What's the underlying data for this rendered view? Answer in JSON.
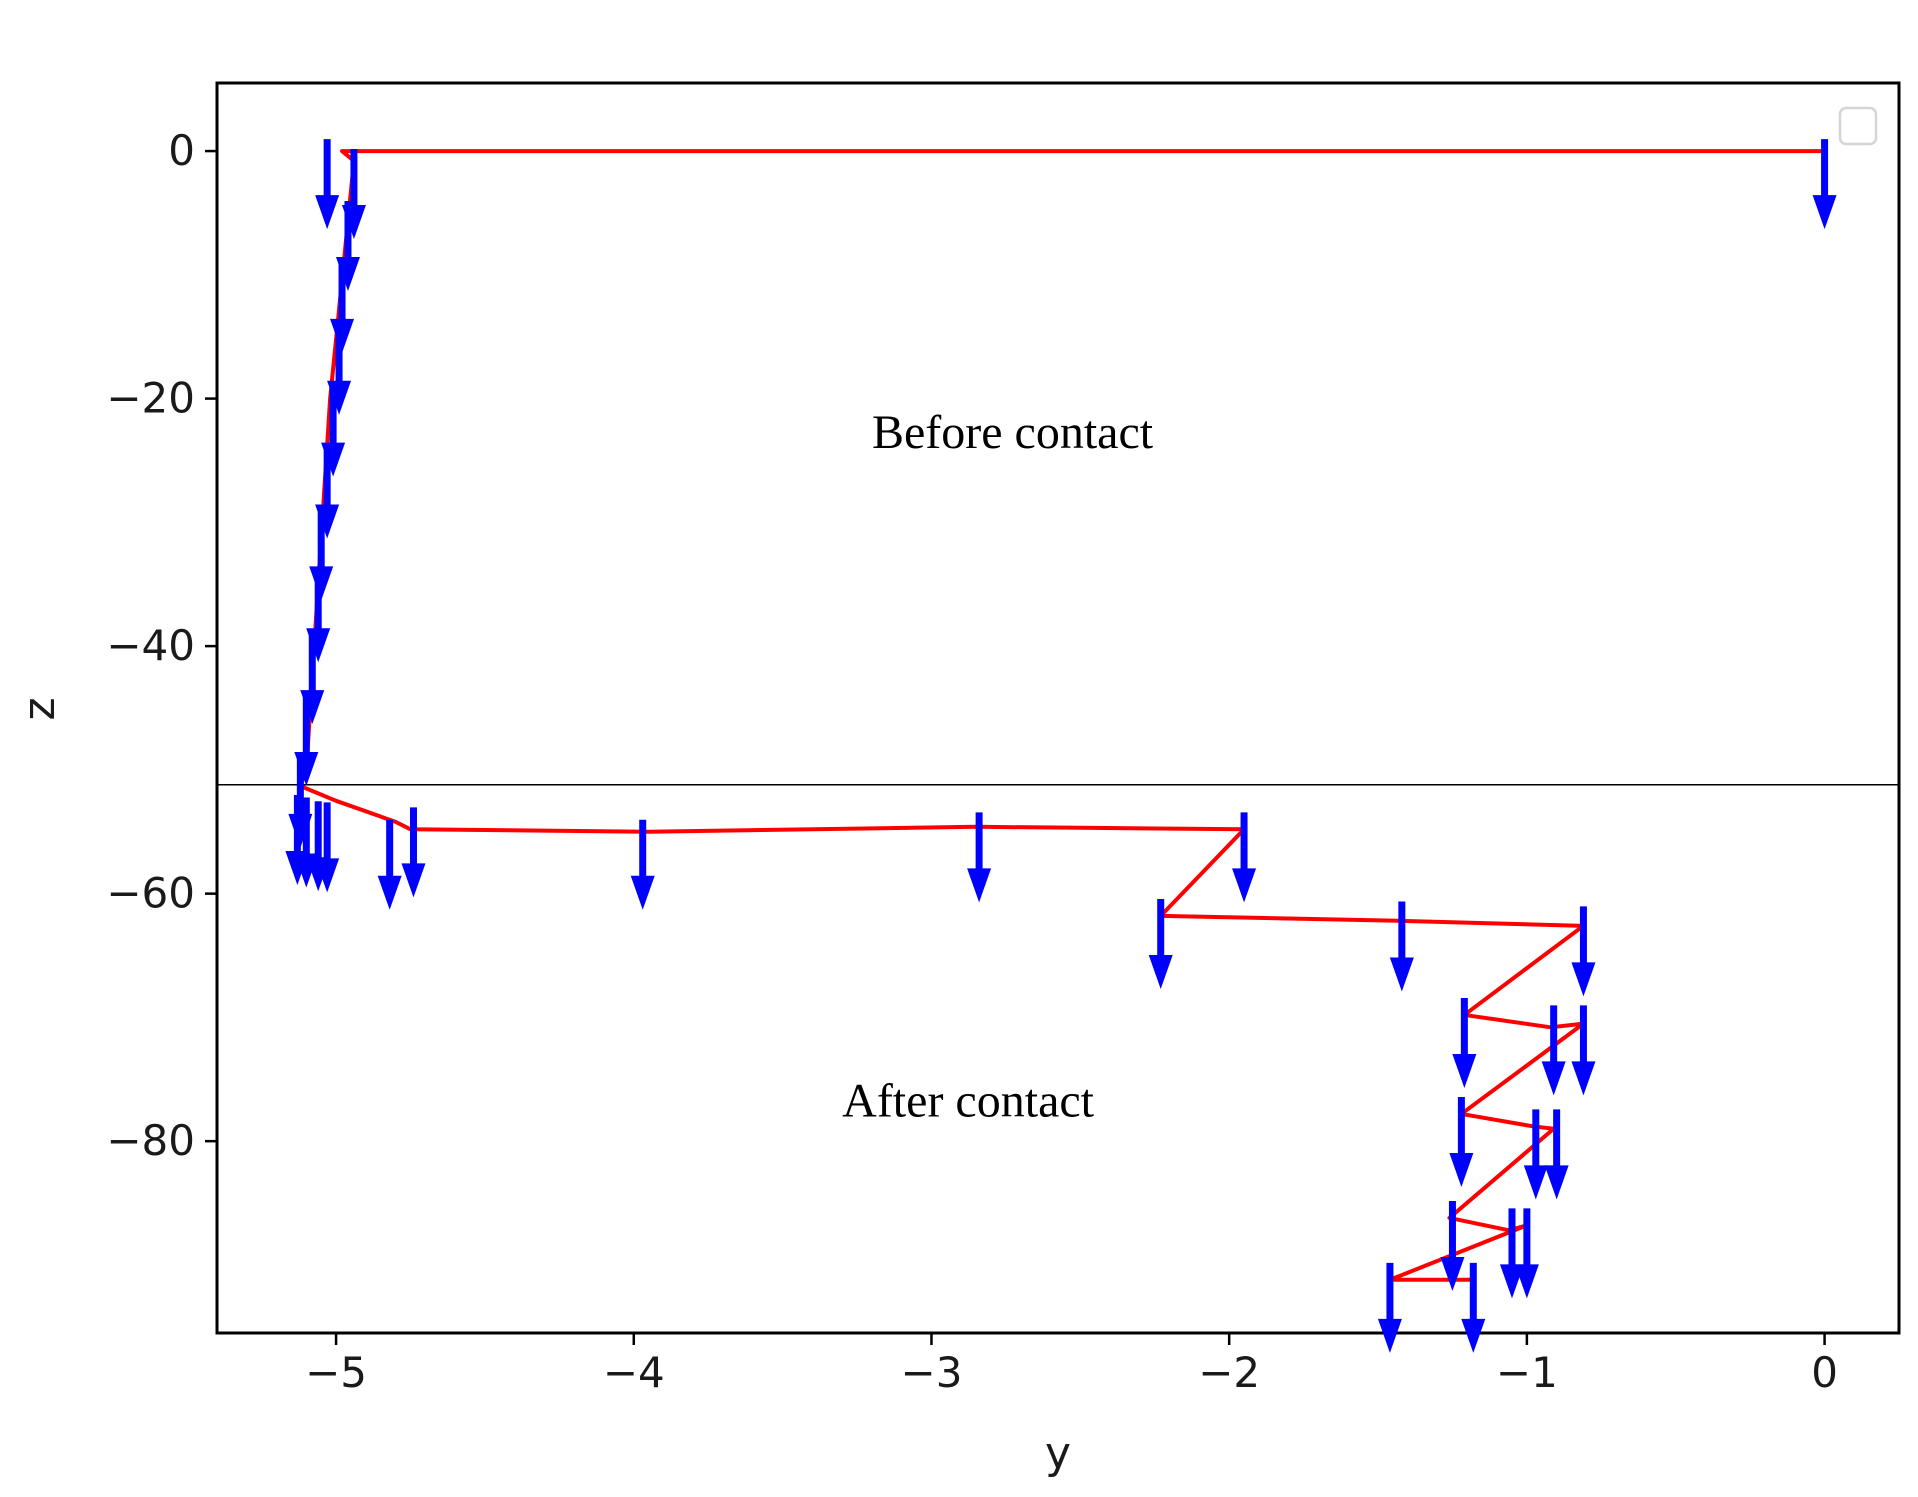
{
  "chart_data": {
    "type": "line",
    "xlabel": "y",
    "ylabel": "z",
    "xlim": [
      -5.4,
      0.25
    ],
    "ylim": [
      -95.5,
      5.5
    ],
    "x_ticks": [
      {
        "value": -5,
        "label": "−5"
      },
      {
        "value": -4,
        "label": "−4"
      },
      {
        "value": -3,
        "label": "−3"
      },
      {
        "value": -2,
        "label": "−2"
      },
      {
        "value": -1,
        "label": "−1"
      },
      {
        "value": 0,
        "label": "0"
      }
    ],
    "y_ticks": [
      {
        "value": 0,
        "label": "0"
      },
      {
        "value": -20,
        "label": "−20"
      },
      {
        "value": -40,
        "label": "−40"
      },
      {
        "value": -60,
        "label": "−60"
      },
      {
        "value": -80,
        "label": "−80"
      }
    ],
    "grid": false,
    "legend": "top-right (empty)",
    "contact_line_z": -51.2,
    "annotations": [
      {
        "text": "Before contact",
        "x": -3.2,
        "y": -24
      },
      {
        "text": "After contact",
        "x": -3.3,
        "y": -78
      }
    ],
    "series": [
      {
        "style": "red line",
        "color": "#ff0000",
        "points": [
          [
            0,
            0
          ],
          [
            -4.98,
            0
          ],
          [
            -4.94,
            -0.8
          ],
          [
            -5.02,
            -20
          ],
          [
            -5.1,
            -50
          ],
          [
            -5.12,
            -51.3
          ],
          [
            -5.0,
            -52.5
          ],
          [
            -4.8,
            -54.2
          ],
          [
            -4.75,
            -54.8
          ],
          [
            -3.95,
            -55.0
          ],
          [
            -2.85,
            -54.6
          ],
          [
            -1.95,
            -54.8
          ],
          [
            -2.23,
            -61.8
          ],
          [
            -1.42,
            -62.2
          ],
          [
            -0.81,
            -62.6
          ],
          [
            -1.21,
            -69.8
          ],
          [
            -0.92,
            -70.8
          ],
          [
            -0.81,
            -70.5
          ],
          [
            -1.22,
            -77.8
          ],
          [
            -0.98,
            -78.8
          ],
          [
            -0.91,
            -79.0
          ],
          [
            -1.26,
            -86.2
          ],
          [
            -1.06,
            -87.2
          ],
          [
            -1.0,
            -86.8
          ],
          [
            -1.46,
            -91.2
          ],
          [
            -1.17,
            -91.2
          ]
        ]
      },
      {
        "style": "blue downward arrows",
        "color": "#0000ff",
        "arrows": [
          [
            0,
            0
          ],
          [
            -5.03,
            0
          ],
          [
            -4.94,
            -0.8
          ],
          [
            -4.96,
            -5
          ],
          [
            -4.98,
            -10
          ],
          [
            -4.99,
            -15
          ],
          [
            -5.01,
            -20
          ],
          [
            -5.03,
            -25
          ],
          [
            -5.05,
            -30
          ],
          [
            -5.06,
            -35
          ],
          [
            -5.08,
            -40
          ],
          [
            -5.1,
            -45
          ],
          [
            -5.12,
            -50
          ],
          [
            -5.13,
            -53
          ],
          [
            -5.1,
            -53.2
          ],
          [
            -5.06,
            -53.5
          ],
          [
            -5.03,
            -53.6
          ],
          [
            -4.82,
            -55.0
          ],
          [
            -4.74,
            -54.0
          ],
          [
            -3.97,
            -55.0
          ],
          [
            -2.84,
            -54.4
          ],
          [
            -1.95,
            -54.4
          ],
          [
            -2.23,
            -61.4
          ],
          [
            -1.42,
            -61.6
          ],
          [
            -0.81,
            -62.0
          ],
          [
            -1.21,
            -69.4
          ],
          [
            -0.91,
            -70.0
          ],
          [
            -0.81,
            -70.0
          ],
          [
            -1.22,
            -77.4
          ],
          [
            -0.97,
            -78.4
          ],
          [
            -0.9,
            -78.4
          ],
          [
            -1.25,
            -85.8
          ],
          [
            -1.05,
            -86.4
          ],
          [
            -1.0,
            -86.4
          ],
          [
            -1.46,
            -90.8
          ],
          [
            -1.18,
            -90.8
          ]
        ]
      }
    ]
  }
}
